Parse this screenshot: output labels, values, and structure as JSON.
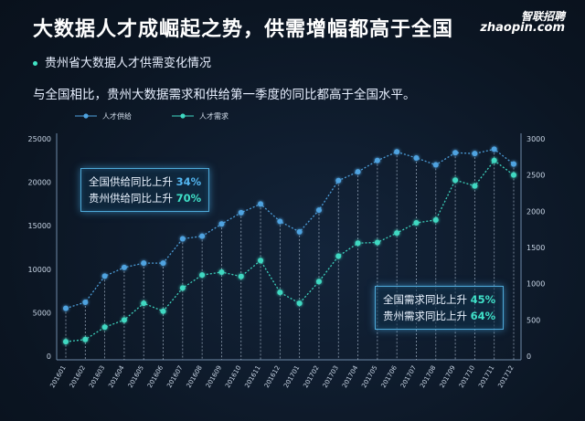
{
  "header": {
    "title": "大数据人才成崛起之势，供需增幅都高于全国",
    "logo_cn": "智联招聘",
    "logo_en": "zhaopin.com",
    "subtitle": "贵州省大数据人才供需变化情况",
    "description": "与全国相比，贵州大数据需求和供给第一季度的同比都高于全国水平。"
  },
  "colors": {
    "supply": "#4fa3e0",
    "demand": "#3fd9c2",
    "accent": "#3fe0c8"
  },
  "annotations": {
    "supply_box": {
      "line1_prefix": "全国供给同比上升",
      "line1_value": "34%",
      "line2_prefix": "贵州供给同比上升",
      "line2_value": "70%"
    },
    "demand_box": {
      "line1_prefix": "全国需求同比上升",
      "line1_value": "45%",
      "line2_prefix": "贵州需求同比上升",
      "line2_value": "64%"
    }
  },
  "chart_data": {
    "type": "line",
    "categories": [
      "201601",
      "201602",
      "201603",
      "201604",
      "201605",
      "201606",
      "201607",
      "201608",
      "201609",
      "201610",
      "201611",
      "201612",
      "201701",
      "201702",
      "201703",
      "201704",
      "201705",
      "201706",
      "201707",
      "201708",
      "201709",
      "201710",
      "201711",
      "201712"
    ],
    "series": [
      {
        "name": "人才供给",
        "axis": "left",
        "values": [
          5500,
          6200,
          9200,
          10200,
          10700,
          10700,
          13500,
          13800,
          15200,
          16500,
          17500,
          15500,
          14300,
          16800,
          20200,
          21200,
          22500,
          23500,
          22800,
          22000,
          23400,
          23300,
          23800,
          22100
        ]
      },
      {
        "name": "人才需求",
        "axis": "right",
        "values": [
          200,
          230,
          400,
          500,
          730,
          620,
          940,
          1120,
          1160,
          1100,
          1320,
          880,
          730,
          1030,
          1380,
          1560,
          1570,
          1700,
          1840,
          1880,
          2430,
          2350,
          2700,
          2500
        ]
      }
    ],
    "y_left": {
      "min": 0,
      "max": 25000,
      "ticks": [
        0,
        5000,
        10000,
        15000,
        20000,
        25000
      ]
    },
    "y_right": {
      "min": 0,
      "max": 3000,
      "ticks": [
        0,
        500,
        1000,
        1500,
        2000,
        2500,
        3000
      ]
    },
    "legend_position": "top-left",
    "grid": false
  }
}
